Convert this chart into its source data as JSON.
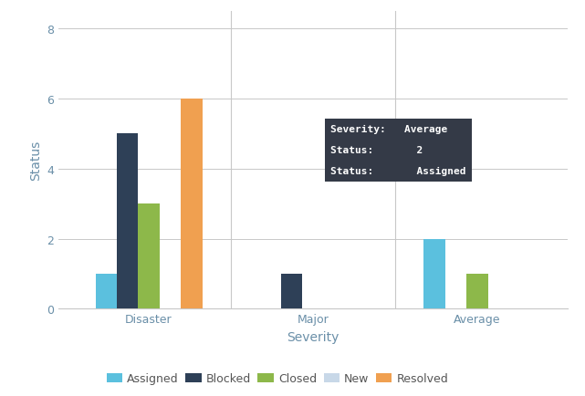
{
  "categories": [
    "Disaster",
    "Major",
    "Average"
  ],
  "series": [
    {
      "name": "Assigned",
      "color": "#5bc0de",
      "values": [
        1,
        0,
        2
      ]
    },
    {
      "name": "Blocked",
      "color": "#2e4057",
      "values": [
        5,
        1,
        0
      ]
    },
    {
      "name": "Closed",
      "color": "#8db84a",
      "values": [
        3,
        0,
        1
      ]
    },
    {
      "name": "New",
      "color": "#c8d8e8",
      "values": [
        0,
        0,
        0
      ]
    },
    {
      "name": "Resolved",
      "color": "#f0a050",
      "values": [
        6,
        0,
        0
      ]
    }
  ],
  "xlabel": "Severity",
  "ylabel": "Status",
  "ylim": [
    0,
    8.5
  ],
  "yticks": [
    0,
    2,
    4,
    6,
    8
  ],
  "background_color": "#ffffff",
  "grid_color": "#c8c8c8",
  "tooltip_bg": "#343a47",
  "tooltip_fg": "#ffffff",
  "bar_width": 0.13,
  "legend_fontsize": 9,
  "axis_label_fontsize": 10,
  "tick_fontsize": 9
}
